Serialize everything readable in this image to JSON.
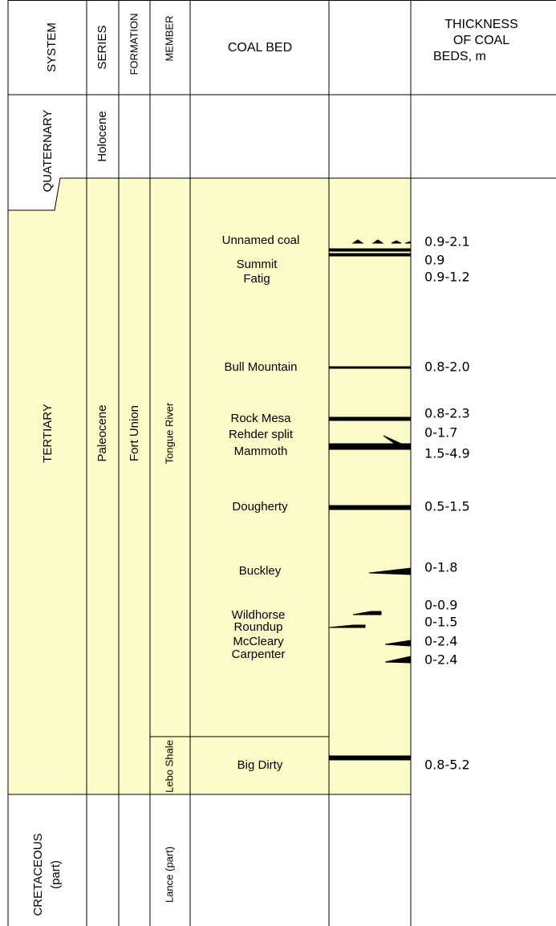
{
  "header": {
    "system": "SYSTEM",
    "series": "SERIES",
    "formation": "FORMATION",
    "member": "MEMBER",
    "coal_bed": "COAL BED",
    "thickness": [
      "THICKNESS",
      "OF COAL",
      "BEDS, m"
    ]
  },
  "units": {
    "quaternary": "QUATERNARY",
    "holocene": "Holocene",
    "tertiary": "TERTIARY",
    "paleocene": "Paleocene",
    "fort_union": "Fort Union",
    "tongue_river": "Tongue River",
    "lebo_shale": "Lebo Shale",
    "cretaceous": [
      "CRETACEOUS",
      "(part)"
    ],
    "lance": "Lance (part)"
  },
  "beds": [
    {
      "name": "Unnamed coal",
      "thickness": "0.9-2.1"
    },
    {
      "name": "Summit",
      "thickness": "0.9"
    },
    {
      "name": "Fatig",
      "thickness": "0.9-1.2"
    },
    {
      "name": "Bull Mountain",
      "thickness": "0.8-2.0"
    },
    {
      "name": "Rock Mesa",
      "thickness": "0.8-2.3"
    },
    {
      "name": "Rehder split",
      "thickness": "0-1.7"
    },
    {
      "name": "Mammoth",
      "thickness": "1.5-4.9"
    },
    {
      "name": "Dougherty",
      "thickness": "0.5-1.5"
    },
    {
      "name": "Buckley",
      "thickness": "0-1.8"
    },
    {
      "name": "Wildhorse",
      "thickness": "0-0.9"
    },
    {
      "name": "Roundup",
      "thickness": "0-1.5"
    },
    {
      "name": "McCleary",
      "thickness": "0-2.4"
    },
    {
      "name": "Carpenter",
      "thickness": "0-2.4"
    },
    {
      "name": "Big Dirty",
      "thickness": "0.8-5.2"
    }
  ]
}
